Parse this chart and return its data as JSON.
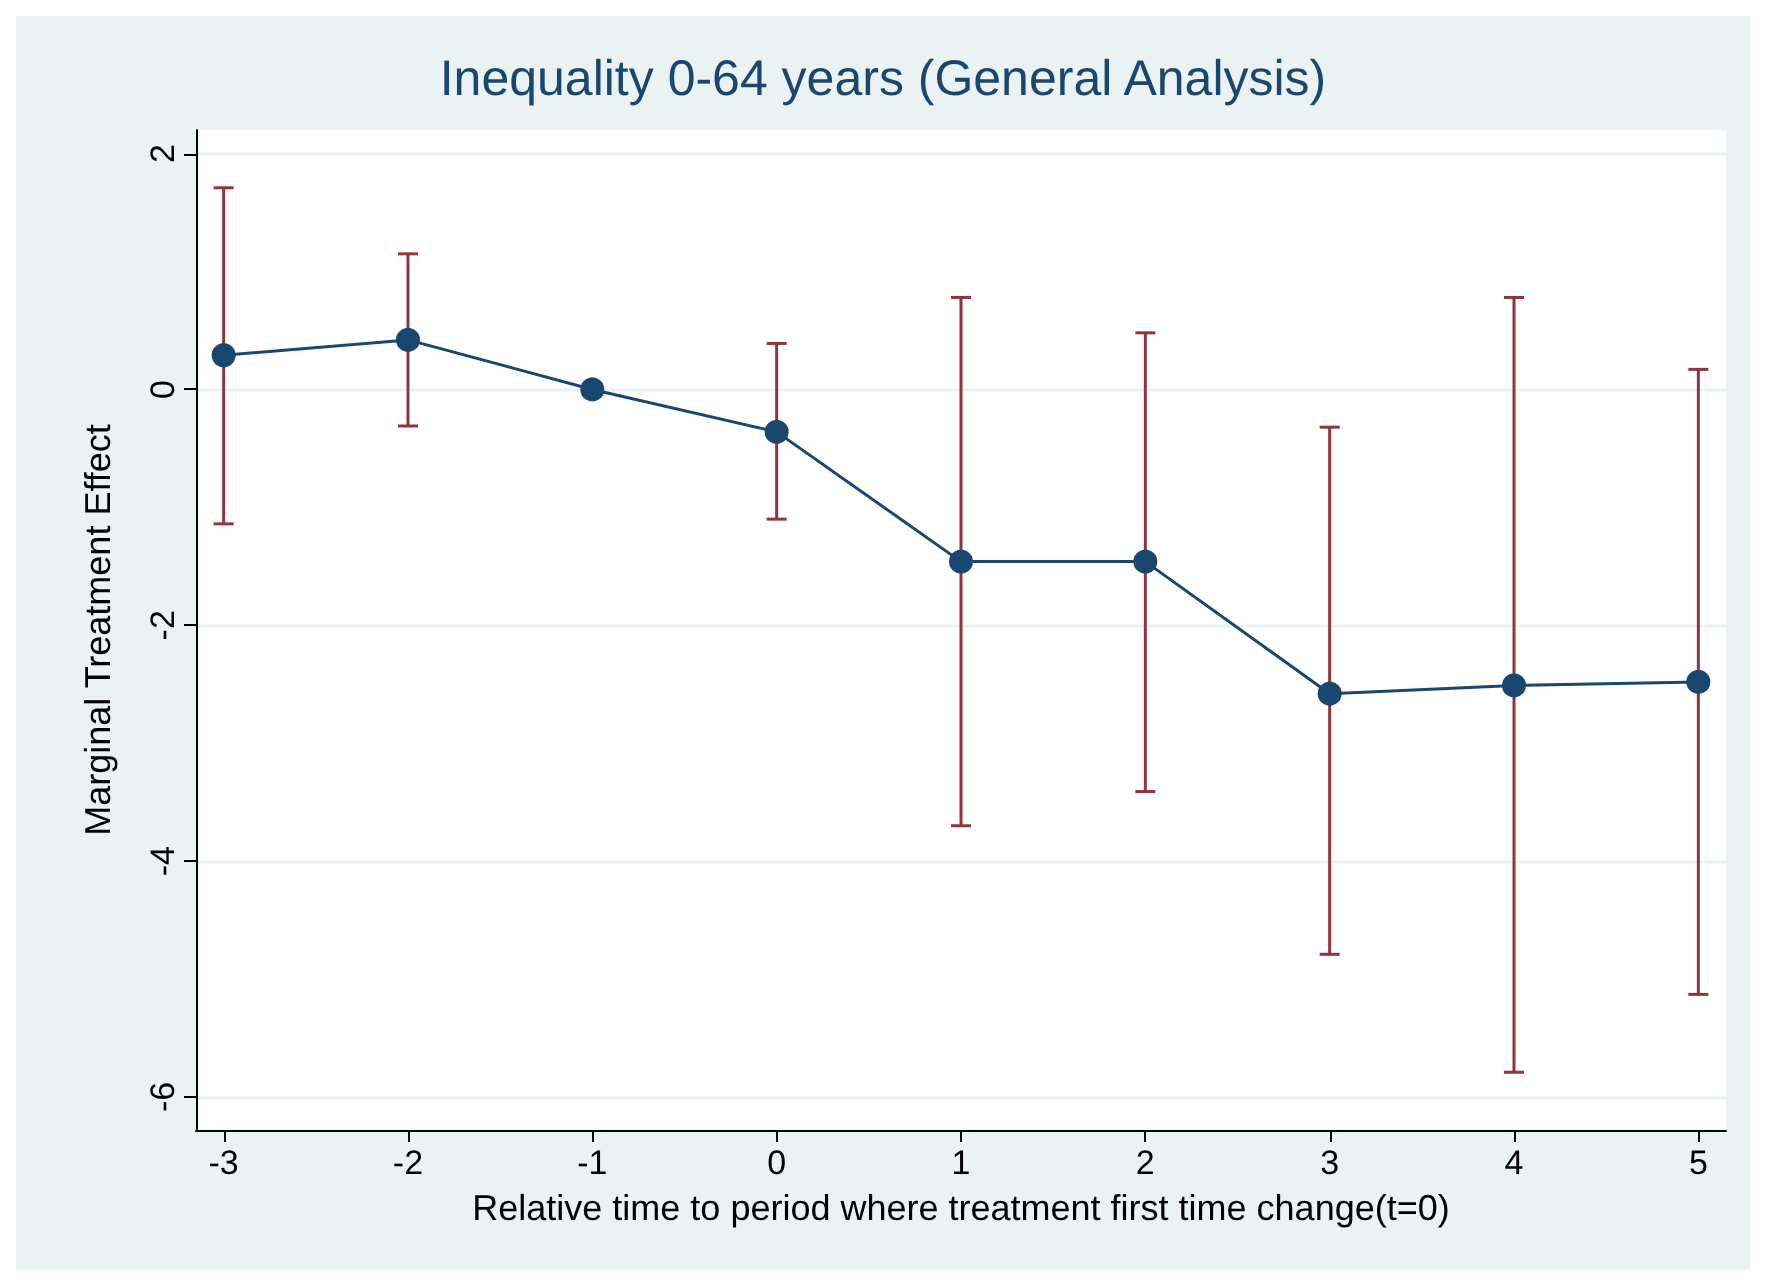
{
  "chart_data": {
    "type": "line",
    "title": "Inequality 0-64 years (General Analysis)",
    "xlabel": "Relative time to period where treatment first time change(t=0)",
    "ylabel": "Marginal Treatment Effect",
    "x": [
      -3,
      -2,
      -1,
      0,
      1,
      2,
      3,
      4,
      5
    ],
    "series": [
      {
        "color": "#1a476f",
        "values": [
          0.29,
          0.42,
          0,
          -0.36,
          -1.46,
          -1.46,
          -2.58,
          -2.51,
          -2.48
        ],
        "errors": [
          [
            -1.14,
            1.71
          ],
          [
            -0.31,
            1.15
          ],
          null,
          [
            -1.1,
            0.39
          ],
          [
            -3.7,
            0.78
          ],
          [
            -3.41,
            0.48
          ],
          [
            -4.79,
            -0.32
          ],
          [
            -5.79,
            0.78
          ],
          [
            -5.13,
            0.17
          ]
        ]
      }
    ],
    "xlim": [
      -3.15,
      5.15
    ],
    "ylim": [
      -6.28,
      2.2
    ],
    "xticks": [
      -3,
      -2,
      -1,
      0,
      1,
      2,
      3,
      4,
      5
    ],
    "yticks": [
      -6,
      -4,
      -2,
      0,
      2
    ],
    "grid": "y",
    "marker": "circle",
    "line_style": "solid"
  }
}
